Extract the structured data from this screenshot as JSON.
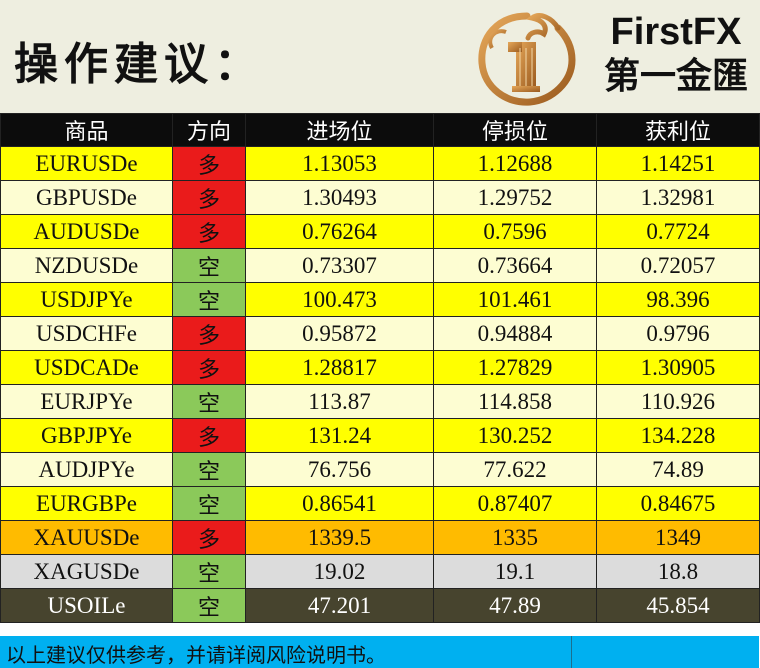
{
  "header": {
    "title": "操作建议：",
    "brand_en": "FirstFX",
    "brand_cn": "第一金匯"
  },
  "columns": [
    "商品",
    "方向",
    "进场位",
    "停损位",
    "获利位"
  ],
  "rows": [
    {
      "symbol": "EURUSDe",
      "direction": "多",
      "entry": "1.13053",
      "stop": "1.12688",
      "target": "1.14251"
    },
    {
      "symbol": "GBPUSDe",
      "direction": "多",
      "entry": "1.30493",
      "stop": "1.29752",
      "target": "1.32981"
    },
    {
      "symbol": "AUDUSDe",
      "direction": "多",
      "entry": "0.76264",
      "stop": "0.7596",
      "target": "0.7724"
    },
    {
      "symbol": "NZDUSDe",
      "direction": "空",
      "entry": "0.73307",
      "stop": "0.73664",
      "target": "0.72057"
    },
    {
      "symbol": "USDJPYe",
      "direction": "空",
      "entry": "100.473",
      "stop": "101.461",
      "target": "98.396"
    },
    {
      "symbol": "USDCHFe",
      "direction": "多",
      "entry": "0.95872",
      "stop": "0.94884",
      "target": "0.9796"
    },
    {
      "symbol": "USDCADe",
      "direction": "多",
      "entry": "1.28817",
      "stop": "1.27829",
      "target": "1.30905"
    },
    {
      "symbol": "EURJPYe",
      "direction": "空",
      "entry": "113.87",
      "stop": "114.858",
      "target": "110.926"
    },
    {
      "symbol": "GBPJPYe",
      "direction": "多",
      "entry": "131.24",
      "stop": "130.252",
      "target": "134.228"
    },
    {
      "symbol": "AUDJPYe",
      "direction": "空",
      "entry": "76.756",
      "stop": "77.622",
      "target": "74.89"
    },
    {
      "symbol": "EURGBPe",
      "direction": "空",
      "entry": "0.86541",
      "stop": "0.87407",
      "target": "0.84675"
    },
    {
      "symbol": "XAUUSDe",
      "direction": "多",
      "entry": "1339.5",
      "stop": "1335",
      "target": "1349"
    },
    {
      "symbol": "XAGUSDe",
      "direction": "空",
      "entry": "19.02",
      "stop": "19.1",
      "target": "18.8"
    },
    {
      "symbol": "USOILe",
      "direction": "空",
      "entry": "47.201",
      "stop": "47.89",
      "target": "45.854"
    }
  ],
  "footer": {
    "disclaimer": "以上建议仅供参考，并请详阅风险说明书。"
  },
  "colors": {
    "long": "#ea1b1b",
    "short": "#8bc95a",
    "header_bg": "#0c0c0c",
    "footer_bg": "#00b0f0"
  }
}
